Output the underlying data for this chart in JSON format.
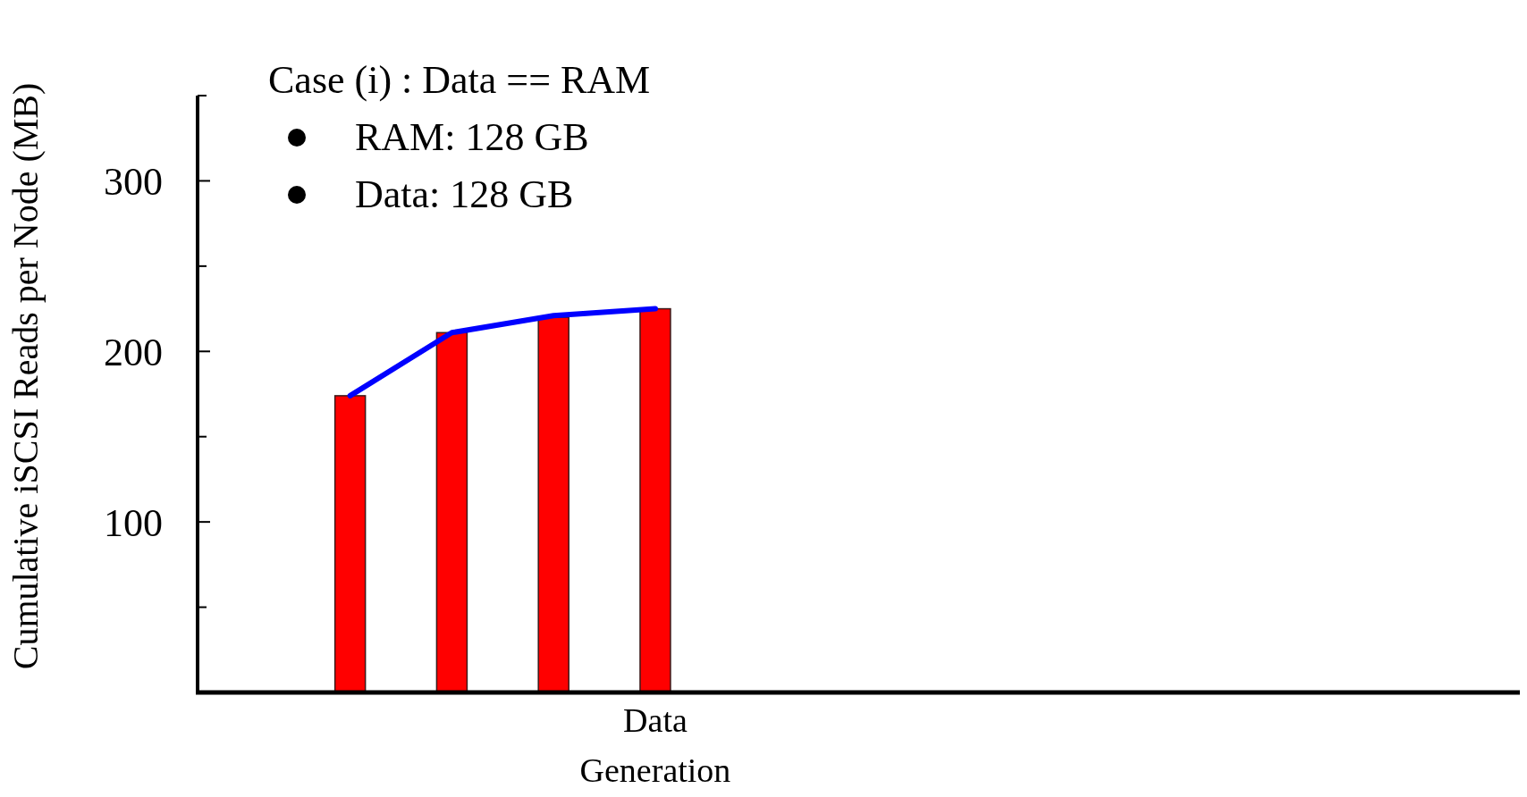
{
  "chart_data": {
    "type": "bar",
    "ylabel": "Cumulative iSCSI Reads per Node (MB)",
    "annotations": [
      "Case (i) : Data == RAM",
      "RAM: 128 GB",
      "Data: 128 GB"
    ],
    "categories": [
      null,
      null,
      null,
      null,
      "Data Generation",
      null,
      null,
      null,
      null,
      null,
      null,
      null,
      null
    ],
    "series": [
      {
        "color": "#ff0000",
        "values": [
          null,
          174,
          211,
          220,
          225,
          0,
          0,
          0,
          0,
          0,
          0,
          0,
          0
        ]
      },
      {
        "type": "line",
        "color": "#0000ff",
        "values": [
          null,
          174,
          211,
          221,
          225,
          null,
          null,
          null,
          null,
          null,
          null,
          null,
          null
        ]
      }
    ],
    "ylim": [
      0,
      350
    ],
    "yticks": [
      {
        "value": 50,
        "label": null
      },
      100,
      {
        "value": 150,
        "label": null
      },
      200,
      {
        "value": 250,
        "label": null
      },
      300,
      {
        "value": 350,
        "label": null
      }
    ],
    "grid": false
  }
}
